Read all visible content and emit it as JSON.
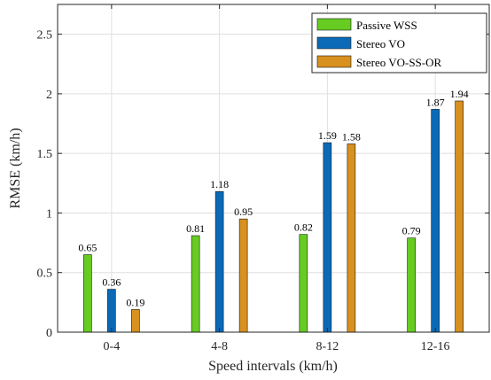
{
  "chart_data": {
    "type": "bar",
    "title": "",
    "xlabel": "Speed intervals (km/h)",
    "ylabel": "RMSE (km/h)",
    "categories": [
      "0-4",
      "4-8",
      "8-12",
      "12-16"
    ],
    "ylim": [
      0,
      2.75
    ],
    "yticks": [
      0,
      0.5,
      1,
      1.5,
      2,
      2.5
    ],
    "ytick_labels": [
      "0",
      "0.5",
      "1",
      "1.5",
      "2",
      "2.5"
    ],
    "grid": true,
    "legend_position": "top-right",
    "series": [
      {
        "name": "Passive WSS",
        "color": "#66cc22",
        "values": [
          0.65,
          0.81,
          0.82,
          0.79
        ],
        "labels": [
          "0.65",
          "0.81",
          "0.82",
          "0.79"
        ]
      },
      {
        "name": "Stereo VO",
        "color": "#0a6ab8",
        "values": [
          0.36,
          1.18,
          1.59,
          1.87
        ],
        "labels": [
          "0.36",
          "1.18",
          "1.59",
          "1.87"
        ]
      },
      {
        "name": "Stereo VO-SS-OR",
        "color": "#d8901e",
        "values": [
          0.19,
          0.95,
          1.58,
          1.94
        ],
        "labels": [
          "0.19",
          "0.95",
          "1.58",
          "1.94"
        ]
      }
    ]
  }
}
